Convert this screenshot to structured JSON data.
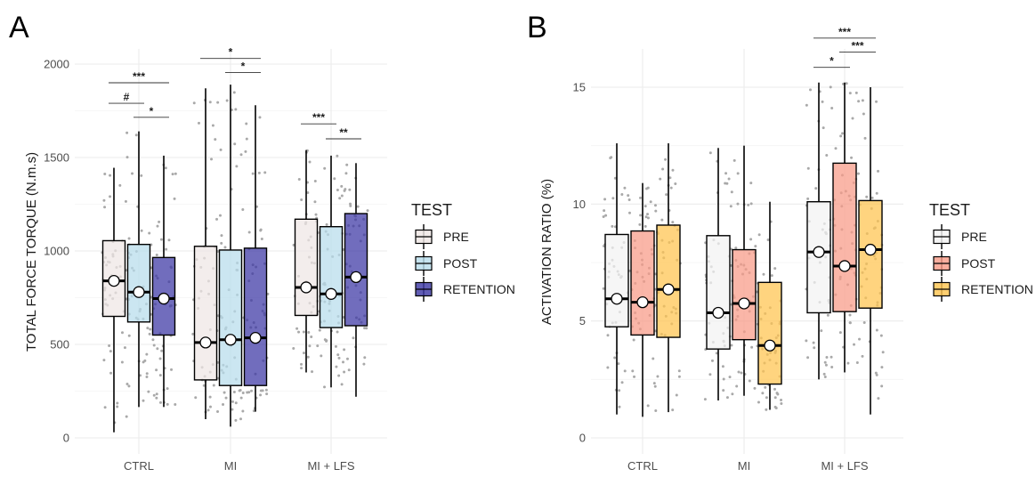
{
  "chart_data": [
    {
      "panel": "A",
      "type": "box",
      "ylabel": "TOTAL FORCE TORQUE (N.m.s)",
      "ylim": [
        0,
        2000
      ],
      "yticks": [
        0,
        500,
        1000,
        1500,
        2000
      ],
      "categories": [
        "CTRL",
        "MI",
        "MI + LFS"
      ],
      "legend": {
        "title": "TEST",
        "placement": "right"
      },
      "series": [
        {
          "name": "PRE",
          "color": "#efe6e4",
          "boxes": [
            {
              "min": 30,
              "q1": 650,
              "median": 840,
              "q3": 1055,
              "max": 1445,
              "mean": 840
            },
            {
              "min": 100,
              "q1": 310,
              "median": 510,
              "q3": 1025,
              "max": 1870,
              "mean": 510
            },
            {
              "min": 350,
              "q1": 655,
              "median": 805,
              "q3": 1170,
              "max": 1540,
              "mean": 805
            }
          ]
        },
        {
          "name": "POST",
          "color": "#b7dceb",
          "boxes": [
            {
              "min": 165,
              "q1": 620,
              "median": 780,
              "q3": 1035,
              "max": 1640,
              "mean": 780
            },
            {
              "min": 60,
              "q1": 280,
              "median": 525,
              "q3": 1005,
              "max": 1890,
              "mean": 525
            },
            {
              "min": 270,
              "q1": 590,
              "median": 770,
              "q3": 1130,
              "max": 1510,
              "mean": 770
            }
          ]
        },
        {
          "name": "RETENTION",
          "color": "#3a35a3",
          "boxes": [
            {
              "min": 165,
              "q1": 550,
              "median": 745,
              "q3": 965,
              "max": 1510,
              "mean": 745
            },
            {
              "min": 140,
              "q1": 280,
              "median": 535,
              "q3": 1015,
              "max": 1780,
              "mean": 535
            },
            {
              "min": 220,
              "q1": 600,
              "median": 860,
              "q3": 1200,
              "max": 1470,
              "mean": 860
            }
          ]
        }
      ],
      "significance": [
        {
          "group": 0,
          "from": 0,
          "to": 2,
          "label": "***",
          "y": 1900
        },
        {
          "group": 0,
          "from": 0,
          "to": 1,
          "label": "#",
          "y": 1790
        },
        {
          "group": 0,
          "from": 1,
          "to": 2,
          "label": "*",
          "y": 1715
        },
        {
          "group": 1,
          "from": 0,
          "to": 2,
          "label": "*",
          "y": 2030
        },
        {
          "group": 1,
          "from": 1,
          "to": 2,
          "label": "*",
          "y": 1955
        },
        {
          "group": 2,
          "from": 0,
          "to": 1,
          "label": "***",
          "y": 1680
        },
        {
          "group": 2,
          "from": 1,
          "to": 2,
          "label": "**",
          "y": 1600
        }
      ]
    },
    {
      "panel": "B",
      "type": "box",
      "ylabel": "ACTIVATION RATIO (%)",
      "ylim": [
        0,
        15
      ],
      "yticks": [
        0,
        5,
        10,
        15
      ],
      "categories": [
        "CTRL",
        "MI",
        "MI + LFS"
      ],
      "legend": {
        "title": "TEST",
        "placement": "right"
      },
      "series": [
        {
          "name": "PRE",
          "color": "#f2f2f2",
          "boxes": [
            {
              "min": 1.0,
              "q1": 4.75,
              "median": 5.95,
              "q3": 8.7,
              "max": 12.6,
              "mean": 5.95
            },
            {
              "min": 1.6,
              "q1": 3.8,
              "median": 5.35,
              "q3": 8.65,
              "max": 12.4,
              "mean": 5.35
            },
            {
              "min": 2.5,
              "q1": 5.35,
              "median": 7.95,
              "q3": 10.1,
              "max": 15.2,
              "mean": 7.95
            }
          ]
        },
        {
          "name": "POST",
          "color": "#f89a86",
          "boxes": [
            {
              "min": 0.9,
              "q1": 4.4,
              "median": 5.8,
              "q3": 8.85,
              "max": 10.9,
              "mean": 5.8
            },
            {
              "min": 1.8,
              "q1": 4.2,
              "median": 5.75,
              "q3": 8.05,
              "max": 12.5,
              "mean": 5.75
            },
            {
              "min": 2.8,
              "q1": 5.4,
              "median": 7.35,
              "q3": 11.75,
              "max": 15.2,
              "mean": 7.35
            }
          ]
        },
        {
          "name": "RETENTION",
          "color": "#ffc44d",
          "boxes": [
            {
              "min": 1.1,
              "q1": 4.3,
              "median": 6.35,
              "q3": 9.1,
              "max": 12.6,
              "mean": 6.35
            },
            {
              "min": 1.2,
              "q1": 2.3,
              "median": 3.95,
              "q3": 6.65,
              "max": 10.1,
              "mean": 3.95
            },
            {
              "min": 1.0,
              "q1": 5.55,
              "median": 8.05,
              "q3": 10.15,
              "max": 15.0,
              "mean": 8.05
            }
          ]
        }
      ],
      "significance": [
        {
          "group": 2,
          "from": 0,
          "to": 2,
          "label": "***",
          "y": 17.1
        },
        {
          "group": 2,
          "from": 0,
          "to": 1,
          "label": "*",
          "y": 15.85
        },
        {
          "group": 2,
          "from": 1,
          "to": 2,
          "label": "***",
          "y": 16.5
        }
      ]
    }
  ]
}
